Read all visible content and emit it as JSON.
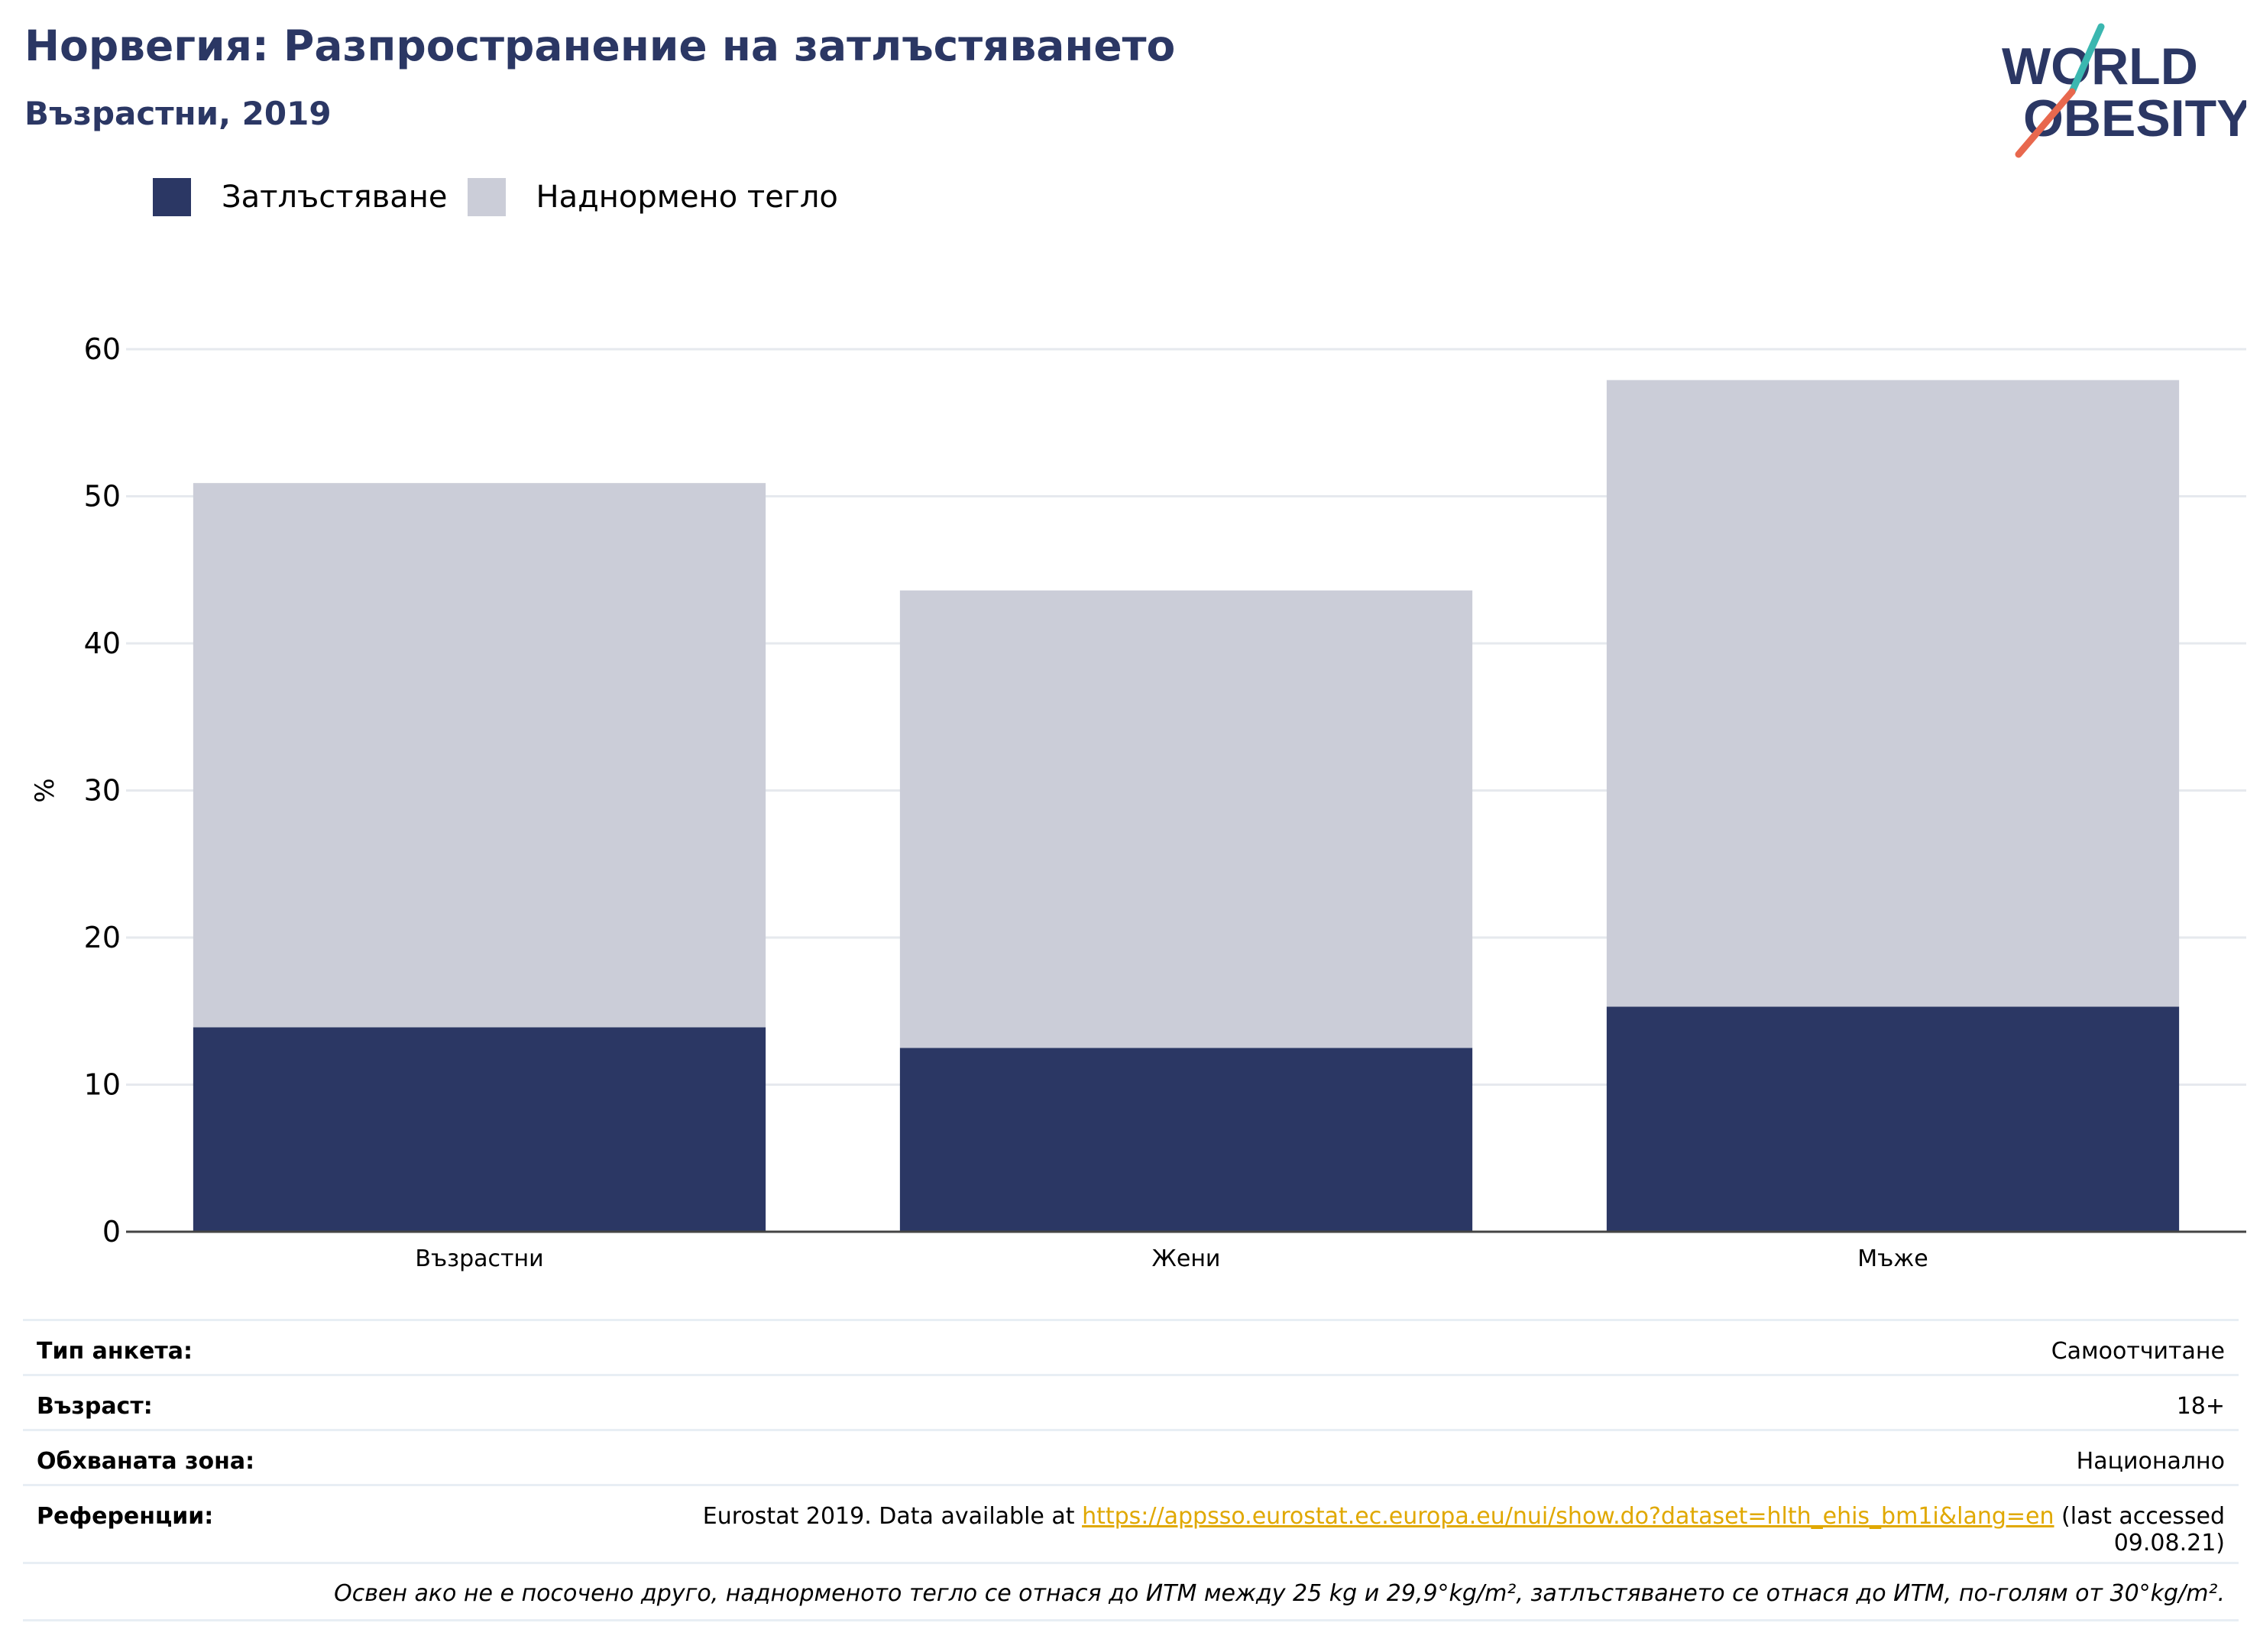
{
  "title": "Норвегия: Разпространение на затлъстяването",
  "subtitle": "Възрастни, 2019",
  "logo": {
    "line1": "WORLD",
    "line2": "OBESITY"
  },
  "colors": {
    "obesity": "#2b3764",
    "overweight": "#cbcdd8",
    "title": "#2b3764",
    "link": "#e0a800"
  },
  "legend": {
    "obesity": "Затлъстяване",
    "overweight": "Наднормено тегло"
  },
  "chart_data": {
    "type": "bar",
    "stacked": true,
    "categories": [
      "Възрастни",
      "Жени",
      "Мъже"
    ],
    "series": [
      {
        "name": "Затлъстяване",
        "values": [
          13.9,
          12.5,
          15.3
        ]
      },
      {
        "name": "Наднормено тегло",
        "values": [
          37.0,
          31.1,
          42.6
        ]
      }
    ],
    "totals": [
      50.9,
      43.6,
      57.9
    ],
    "ylabel": "%",
    "ylim": [
      0,
      60
    ],
    "yticks": [
      0,
      10,
      20,
      30,
      40,
      50,
      60
    ],
    "grid": true,
    "legend_position": "top-left"
  },
  "info": {
    "survey_type_label": "Тип анкета:",
    "survey_type_value": "Самоотчитане",
    "age_label": "Възраст:",
    "age_value": "18+",
    "area_label": "Обхваната зона:",
    "area_value": "Национално",
    "refs_label": "Референции:",
    "refs_prefix": "Eurostat 2019. Data available at ",
    "refs_link": "https://appsso.eurostat.ec.europa.eu/nui/show.do?dataset=hlth_ehis_bm1i&lang=en",
    "refs_suffix": " (last accessed",
    "refs_date": "09.08.21)"
  },
  "note": "Освен ако не е посочено друго, наднорменото тегло се отнася до ИТМ между 25 kg и 29,9°kg/m², затлъстяването се отнася до ИТМ, по-голям от 30°kg/m²."
}
